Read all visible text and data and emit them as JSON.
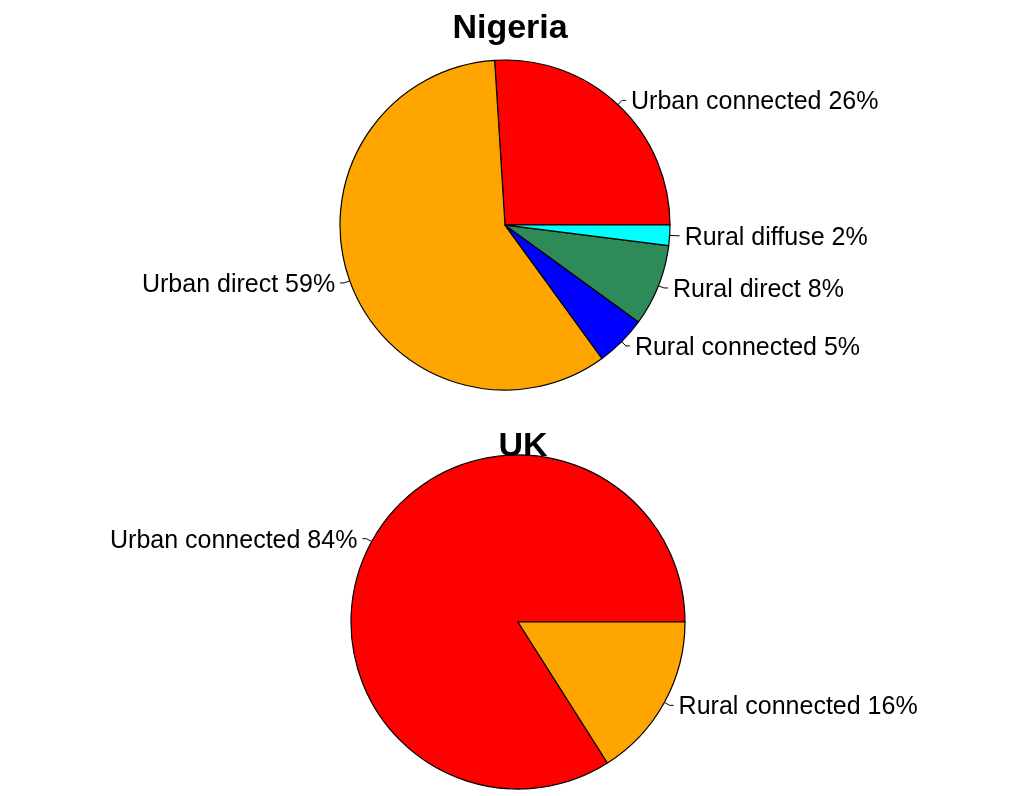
{
  "chart_data": [
    {
      "type": "pie",
      "title": "Nigeria",
      "categories": [
        "Urban connected",
        "Urban direct",
        "Rural connected",
        "Rural direct",
        "Rural diffuse"
      ],
      "values": [
        26,
        59,
        5,
        8,
        2
      ],
      "value_labels": [
        "26%",
        "59%",
        "5%",
        "8%",
        "2%"
      ],
      "colors": [
        "#ff0000",
        "#ffa500",
        "#0000ff",
        "#2e8b57",
        "#00ffff"
      ],
      "legend": false
    },
    {
      "type": "pie",
      "title": "UK",
      "categories": [
        "Urban connected",
        "Rural connected"
      ],
      "values": [
        84,
        16
      ],
      "value_labels": [
        "84%",
        "16%"
      ],
      "colors": [
        "#ff0000",
        "#ffa500"
      ],
      "legend": false
    }
  ]
}
